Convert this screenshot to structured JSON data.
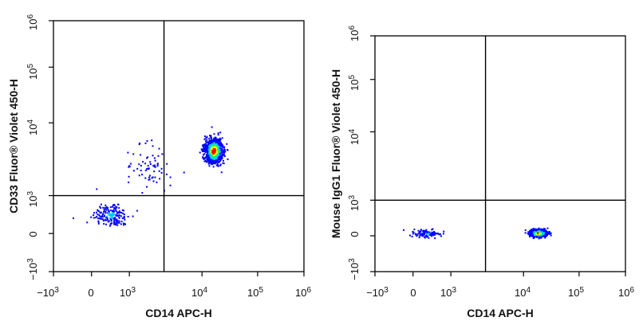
{
  "chart_data": [
    {
      "type": "scatter",
      "subtype": "flow-cytometry-density-dot-plot",
      "xlabel": "CD14 APC-H",
      "ylabel": "CD33 Fluor® Violet 450-H",
      "x_scale": "biexponential",
      "y_scale": "biexponential",
      "xlim": [
        -1000,
        1000000
      ],
      "ylim": [
        -1000,
        1000000
      ],
      "x_ticks": [
        {
          "base": "−10",
          "exp": "3",
          "value": -1000
        },
        {
          "base": "0",
          "exp": "",
          "value": 0
        },
        {
          "base": "10",
          "exp": "3",
          "value": 1000
        },
        {
          "base": "10",
          "exp": "4",
          "value": 10000
        },
        {
          "base": "10",
          "exp": "5",
          "value": 100000
        },
        {
          "base": "10",
          "exp": "6",
          "value": 1000000
        }
      ],
      "y_ticks": [
        {
          "base": "−10",
          "exp": "3",
          "value": -1000
        },
        {
          "base": "0",
          "exp": "",
          "value": 0
        },
        {
          "base": "10",
          "exp": "3",
          "value": 1000
        },
        {
          "base": "10",
          "exp": "4",
          "value": 10000
        },
        {
          "base": "10",
          "exp": "5",
          "value": 100000
        },
        {
          "base": "10",
          "exp": "6",
          "value": 1000000
        }
      ],
      "quadrant_gate": {
        "x": 3000,
        "y": 1000
      },
      "populations": [
        {
          "x_center": 500,
          "y_center": 500,
          "x_spread": 450,
          "y_spread": 300,
          "events": 180,
          "peak_intensity": 0.35
        },
        {
          "x_center": 16000,
          "y_center": 4200,
          "x_spread": 6500,
          "y_spread": 1800,
          "events": 1000,
          "peak_intensity": 1.0
        },
        {
          "x_center": 1800,
          "y_center": 2500,
          "x_spread": 1600,
          "y_spread": 2400,
          "events": 70,
          "peak_intensity": 0.1
        }
      ],
      "density_colors": [
        "#0000ff",
        "#00c8ff",
        "#00ff66",
        "#ffff00",
        "#ff0000"
      ]
    },
    {
      "type": "scatter",
      "subtype": "flow-cytometry-density-dot-plot",
      "xlabel": "CD14 APC-H",
      "ylabel": "Mouse IgG1 Fluor® Violet 450-H",
      "x_scale": "biexponential",
      "y_scale": "biexponential",
      "xlim": [
        -1000,
        1000000
      ],
      "ylim": [
        -1000,
        1000000
      ],
      "x_ticks": [
        {
          "base": "−10",
          "exp": "3",
          "value": -1000
        },
        {
          "base": "0",
          "exp": "",
          "value": 0
        },
        {
          "base": "10",
          "exp": "3",
          "value": 1000
        },
        {
          "base": "10",
          "exp": "4",
          "value": 10000
        },
        {
          "base": "10",
          "exp": "5",
          "value": 100000
        },
        {
          "base": "10",
          "exp": "6",
          "value": 1000000
        }
      ],
      "y_ticks": [
        {
          "base": "−10",
          "exp": "3",
          "value": -1000
        },
        {
          "base": "0",
          "exp": "",
          "value": 0
        },
        {
          "base": "10",
          "exp": "3",
          "value": 1000
        },
        {
          "base": "10",
          "exp": "4",
          "value": 10000
        },
        {
          "base": "10",
          "exp": "5",
          "value": 100000
        },
        {
          "base": "10",
          "exp": "6",
          "value": 1000000
        }
      ],
      "quadrant_gate": {
        "x": 3000,
        "y": 1000
      },
      "populations": [
        {
          "x_center": 350,
          "y_center": 80,
          "x_spread": 350,
          "y_spread": 90,
          "events": 110,
          "peak_intensity": 0.35
        },
        {
          "x_center": 18000,
          "y_center": 90,
          "x_spread": 7000,
          "y_spread": 90,
          "events": 650,
          "peak_intensity": 1.0
        }
      ],
      "density_colors": [
        "#0000ff",
        "#00c8ff",
        "#00ff66",
        "#ffff00",
        "#ff0000"
      ]
    }
  ]
}
